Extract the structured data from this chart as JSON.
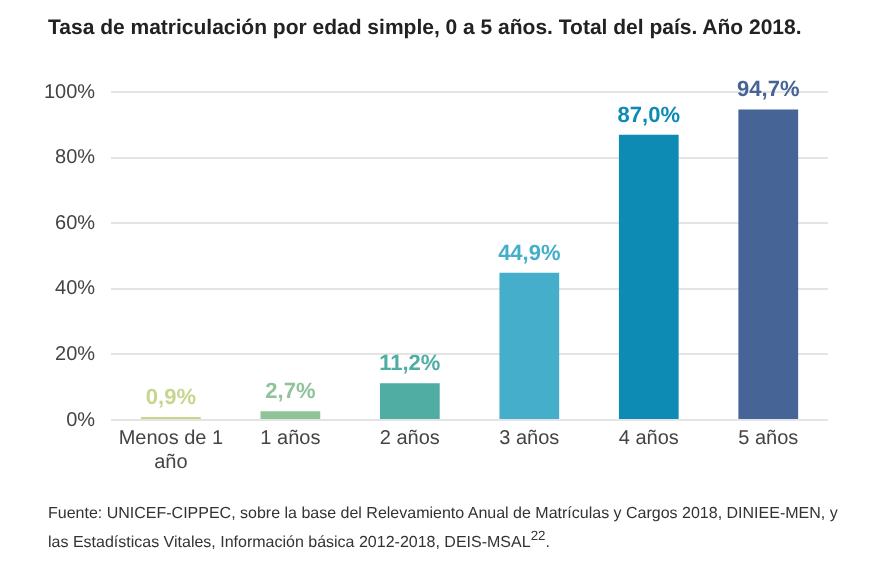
{
  "chart_data": {
    "type": "bar",
    "title": "Tasa de matriculación por edad simple, 0 a 5 años. Total del país. Año 2018.",
    "categories": [
      "Menos de 1 año",
      "1 años",
      "2 años",
      "3 años",
      "4 años",
      "5 años"
    ],
    "values": [
      0.9,
      2.7,
      11.2,
      44.9,
      87.0,
      94.7
    ],
    "colors": [
      "#c5d68f",
      "#8fc49a",
      "#4fada3",
      "#45afcb",
      "#0e8bb5",
      "#466496"
    ],
    "value_labels": [
      "0,9%",
      "2,7%",
      "11,2%",
      "44,9%",
      "87,0%",
      "94,7%"
    ],
    "ylim": [
      0,
      100
    ],
    "yticks": [
      {
        "value": 0,
        "label": "0%"
      },
      {
        "value": 20,
        "label": "20%"
      },
      {
        "value": 40,
        "label": "40%"
      },
      {
        "value": 60,
        "label": "60%"
      },
      {
        "value": 80,
        "label": "80%"
      },
      {
        "value": 100,
        "label": "100%"
      }
    ],
    "grid": "y",
    "legend": false,
    "annotations": [
      "Fuente: UNICEF-CIPPEC, sobre la base del Relevamiento Anual de Matrículas y Cargos 2018, DINIEE-MEN, y las Estadísticas Vitales, Información básica 2012-2018, DEIS-MSAL$^{22}$."
    ]
  }
}
